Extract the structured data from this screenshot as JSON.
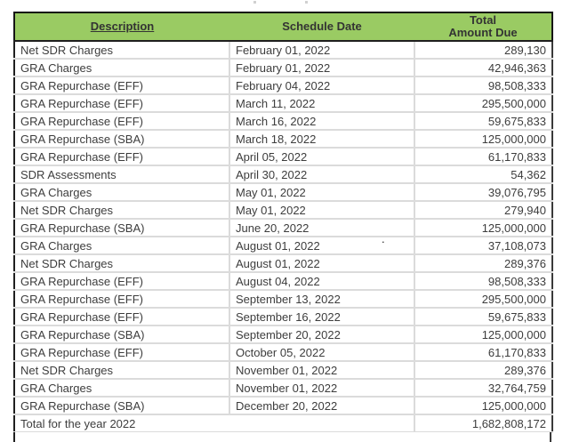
{
  "table": {
    "header": {
      "description": "Description",
      "schedule_date": "Schedule Date",
      "total_line1": "Total",
      "total_line2": "Amount Due"
    },
    "rows": [
      {
        "description": "Net SDR Charges",
        "date": "February 01, 2022",
        "amount": "289,130"
      },
      {
        "description": "GRA Charges",
        "date": "February 01, 2022",
        "amount": "42,946,363"
      },
      {
        "description": "GRA Repurchase (EFF)",
        "date": "February 04, 2022",
        "amount": "98,508,333"
      },
      {
        "description": "GRA Repurchase (EFF)",
        "date": "March 11, 2022",
        "amount": "295,500,000"
      },
      {
        "description": "GRA Repurchase (EFF)",
        "date": "March 16, 2022",
        "amount": "59,675,833"
      },
      {
        "description": "GRA Repurchase (SBA)",
        "date": "March 18, 2022",
        "amount": "125,000,000"
      },
      {
        "description": "GRA Repurchase (EFF)",
        "date": "April 05, 2022",
        "amount": "61,170,833"
      },
      {
        "description": "SDR Assessments",
        "date": "April 30, 2022",
        "amount": "54,362"
      },
      {
        "description": "GRA Charges",
        "date": "May 01, 2022",
        "amount": "39,076,795"
      },
      {
        "description": "Net SDR Charges",
        "date": "May 01, 2022",
        "amount": "279,940"
      },
      {
        "description": "GRA Repurchase (SBA)",
        "date": "June 20, 2022",
        "amount": "125,000,000"
      },
      {
        "description": "GRA Charges",
        "date": "August 01, 2022",
        "amount": "37,108,073"
      },
      {
        "description": "Net SDR Charges",
        "date": "August 01, 2022",
        "amount": "289,376"
      },
      {
        "description": "GRA Repurchase (EFF)",
        "date": "August 04, 2022",
        "amount": "98,508,333"
      },
      {
        "description": "GRA Repurchase (EFF)",
        "date": "September 13, 2022",
        "amount": "295,500,000"
      },
      {
        "description": "GRA Repurchase (EFF)",
        "date": "September 16, 2022",
        "amount": "59,675,833"
      },
      {
        "description": "GRA Repurchase (SBA)",
        "date": "September 20, 2022",
        "amount": "125,000,000"
      },
      {
        "description": "GRA Repurchase (EFF)",
        "date": "October 05, 2022",
        "amount": "61,170,833"
      },
      {
        "description": "Net SDR Charges",
        "date": "November 01, 2022",
        "amount": "289,376"
      },
      {
        "description": "GRA Charges",
        "date": "November 01, 2022",
        "amount": "32,764,759"
      },
      {
        "description": "GRA Repurchase (SBA)",
        "date": "December 20, 2022",
        "amount": "125,000,000"
      }
    ],
    "total_row": {
      "label": "Total for the year 2022",
      "amount": "1,682,808,172"
    },
    "stray_mark": "."
  },
  "colors": {
    "header_bg": "#9acb63",
    "header_text": "#333333",
    "body_text": "#3d3d3d",
    "grid_line": "#dbdbdb",
    "frame_line": "#1f1f1f"
  }
}
